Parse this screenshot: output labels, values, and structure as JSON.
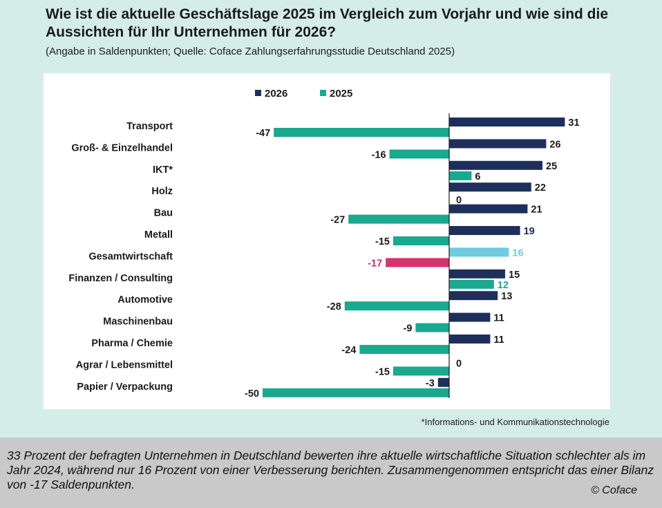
{
  "header": {
    "title": "Wie ist die aktuelle Geschäftslage 2025 im Vergleich zum Vorjahr und wie sind die Aussichten für Ihr Unternehmen für 2026?",
    "subtitle": "(Angabe in Saldenpunkten; Quelle: Coface Zahlungserfahrungsstudie Deutschland 2025)"
  },
  "chart_data": {
    "type": "bar",
    "orientation": "horizontal",
    "categories": [
      "Transport",
      "Groß- & Einzelhandel",
      "IKT*",
      "Holz",
      "Bau",
      "Metall",
      "Gesamtwirtschaft",
      "Finanzen / Consulting",
      "Automotive",
      "Maschinenbau",
      "Pharma / Chemie",
      "Agrar / Lebensmittel",
      "Papier / Verpackung"
    ],
    "series": [
      {
        "name": "2026",
        "color": "#1f2f5c",
        "values": [
          31,
          26,
          25,
          22,
          21,
          19,
          16,
          15,
          13,
          11,
          11,
          0,
          -3
        ]
      },
      {
        "name": "2025",
        "color": "#1aa88f",
        "values": [
          -47,
          -16,
          6,
          0,
          -27,
          -15,
          -17,
          12,
          -28,
          -9,
          -24,
          -15,
          -50
        ]
      }
    ],
    "highlight": {
      "category": "Gesamtwirtschaft",
      "colors": {
        "2026": "#6fcbe0",
        "2025": "#d6336c"
      }
    },
    "label_colors": {
      "Metall.2026": "#1f2f5c",
      "Gesamtwirtschaft.2026": "#6fcbe0",
      "Gesamtwirtschaft.2025": "#c0305f",
      "Finanzen / Consulting.2025": "#1aa88f"
    },
    "legend_position": "top-left",
    "grid": false
  },
  "footnote": "*Informations- und Kommunikationstechnologie",
  "caption": "33 Prozent der befragten Unternehmen in Deutschland bewerten ihre aktuelle wirtschaftliche Situation schlechter als im Jahr 2024, während nur 16 Prozent von einer Verbesserung berichten. Zusammengenommen entspricht das einer Bilanz von -17 Saldenpunkten.",
  "copyright": "© Coface"
}
